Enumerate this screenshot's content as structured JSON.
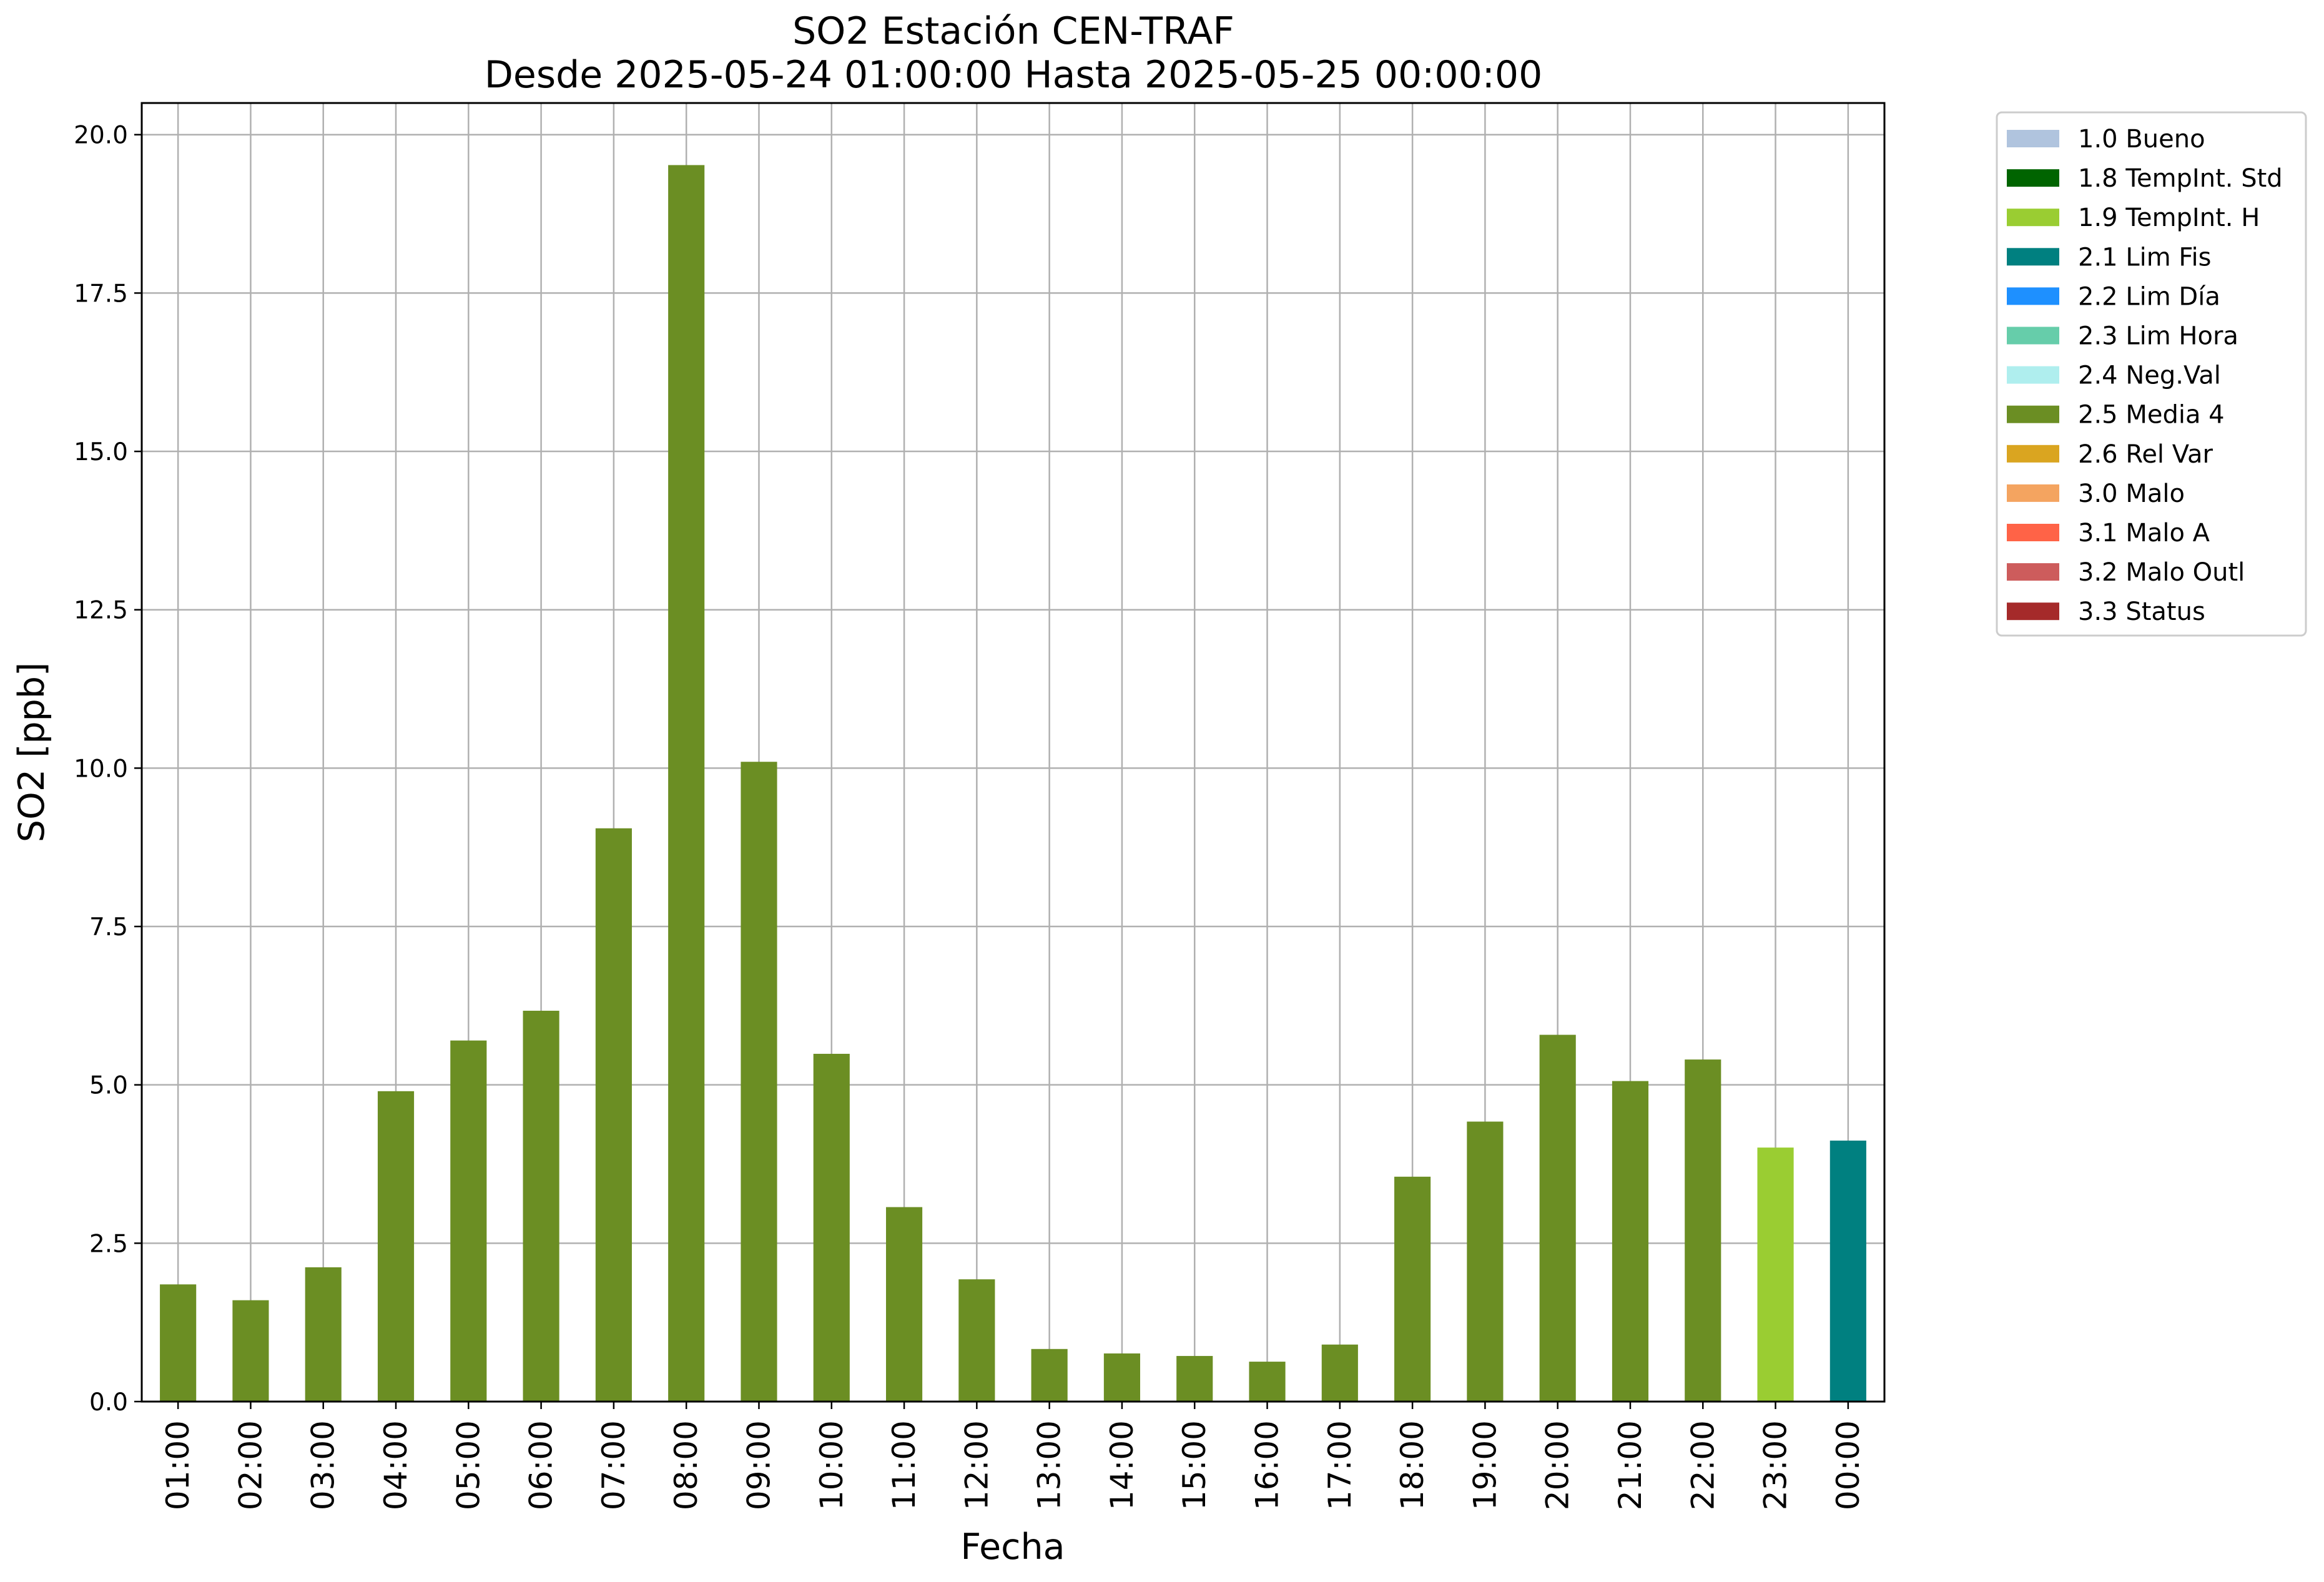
{
  "chart_data": {
    "type": "bar",
    "title": "SO2 Estación CEN-TRAF",
    "subtitle": "Desde 2025-05-24 01:00:00 Hasta 2025-05-25 00:00:00",
    "xlabel": "Fecha",
    "ylabel": "SO2 [ppb]",
    "ylim": [
      0,
      20.5
    ],
    "yticks": [
      "0.0",
      "2.5",
      "5.0",
      "7.5",
      "10.0",
      "12.5",
      "15.0",
      "17.5",
      "20.0"
    ],
    "grid": true,
    "legend_position": "outside-top-right",
    "categories": [
      "01:00",
      "02:00",
      "03:00",
      "04:00",
      "05:00",
      "06:00",
      "07:00",
      "08:00",
      "09:00",
      "10:00",
      "11:00",
      "12:00",
      "13:00",
      "14:00",
      "15:00",
      "16:00",
      "17:00",
      "18:00",
      "19:00",
      "20:00",
      "21:00",
      "22:00",
      "23:00",
      "00:00"
    ],
    "values": [
      1.85,
      1.6,
      2.12,
      4.9,
      5.7,
      6.17,
      9.05,
      19.52,
      10.1,
      5.49,
      3.07,
      1.93,
      0.83,
      0.76,
      0.72,
      0.63,
      0.9,
      3.55,
      4.42,
      5.79,
      5.06,
      5.4,
      4.01,
      4.12
    ],
    "bar_flags": [
      "2.5 Media 4",
      "2.5 Media 4",
      "2.5 Media 4",
      "2.5 Media 4",
      "2.5 Media 4",
      "2.5 Media 4",
      "2.5 Media 4",
      "2.5 Media 4",
      "2.5 Media 4",
      "2.5 Media 4",
      "2.5 Media 4",
      "2.5 Media 4",
      "2.5 Media 4",
      "2.5 Media 4",
      "2.5 Media 4",
      "2.5 Media 4",
      "2.5 Media 4",
      "2.5 Media 4",
      "2.5 Media 4",
      "2.5 Media 4",
      "2.5 Media 4",
      "2.5 Media 4",
      "1.9 TempInt. H",
      "2.1 Lim Fis"
    ],
    "legend": [
      {
        "label": "1.0 Bueno",
        "color": "#b0c4de"
      },
      {
        "label": "1.8 TempInt. Std",
        "color": "#006400"
      },
      {
        "label": "1.9 TempInt. H",
        "color": "#9acd32"
      },
      {
        "label": "2.1 Lim Fis",
        "color": "#008080"
      },
      {
        "label": "2.2 Lim Día",
        "color": "#1e90ff"
      },
      {
        "label": "2.3 Lim Hora",
        "color": "#66cdaa"
      },
      {
        "label": "2.4 Neg.Val",
        "color": "#afeeee"
      },
      {
        "label": "2.5 Media 4",
        "color": "#6b8e23"
      },
      {
        "label": "2.6 Rel Var",
        "color": "#daa520"
      },
      {
        "label": "3.0 Malo",
        "color": "#f4a460"
      },
      {
        "label": "3.1 Malo A",
        "color": "#ff6347"
      },
      {
        "label": "3.2 Malo Outl",
        "color": "#cd5c5c"
      },
      {
        "label": "3.3 Status",
        "color": "#a52a2a"
      }
    ]
  }
}
